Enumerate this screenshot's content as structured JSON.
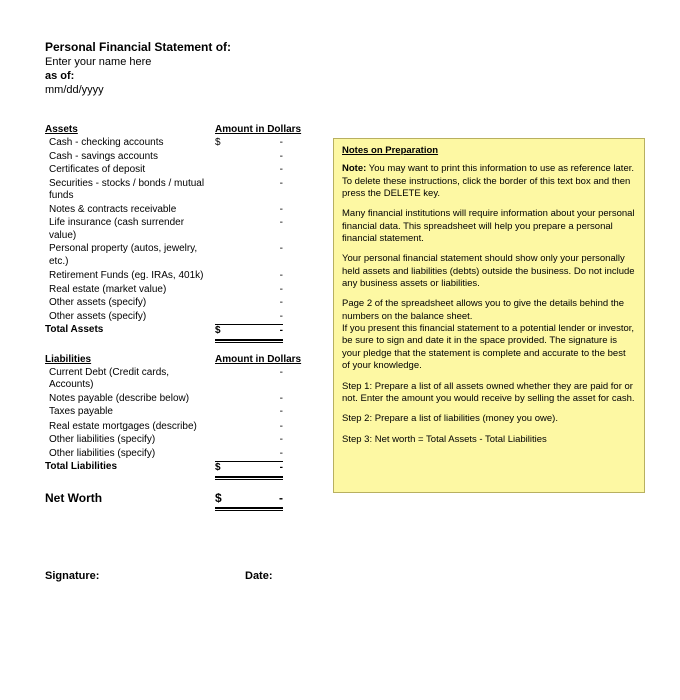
{
  "header": {
    "title": "Personal Financial Statement of:",
    "name_placeholder": "Enter your name here",
    "asof_label": "as of:",
    "date_placeholder": "mm/dd/yyyy"
  },
  "assets": {
    "heading": "Assets",
    "amount_heading": "Amount in Dollars",
    "items": [
      {
        "label": "Cash - checking accounts",
        "currency": "$",
        "value": "-"
      },
      {
        "label": "Cash - savings accounts",
        "currency": "",
        "value": "-"
      },
      {
        "label": "Certificates of deposit",
        "currency": "",
        "value": "-"
      },
      {
        "label": "Securities - stocks / bonds / mutual funds",
        "currency": "",
        "value": "-"
      },
      {
        "label": "Notes & contracts receivable",
        "currency": "",
        "value": "-"
      },
      {
        "label": "Life insurance (cash surrender value)",
        "currency": "",
        "value": "-"
      },
      {
        "label": "Personal property (autos, jewelry, etc.)",
        "currency": "",
        "value": "-"
      },
      {
        "label": "",
        "currency": "",
        "value": ""
      },
      {
        "label": "Retirement Funds (eg. IRAs, 401k)",
        "currency": "",
        "value": "-"
      },
      {
        "label": "Real estate (market value)",
        "currency": "",
        "value": "-"
      },
      {
        "label": "Other assets (specify)",
        "currency": "",
        "value": "-"
      },
      {
        "label": "Other assets (specify)",
        "currency": "",
        "value": "-"
      }
    ],
    "total_label": "Total Assets",
    "total_currency": "$",
    "total_value": "-"
  },
  "liabilities": {
    "heading": "Liabilities",
    "amount_heading": "Amount in Dollars",
    "items": [
      {
        "label": "Current Debt (Credit cards, Accounts)",
        "currency": "",
        "value": "-"
      },
      {
        "label": "Notes payable (describe below)",
        "currency": "",
        "value": "-"
      },
      {
        "label": "Taxes payable",
        "currency": "",
        "value": "-"
      },
      {
        "label": "",
        "currency": "",
        "value": ""
      },
      {
        "label": "Real estate mortgages (describe)",
        "currency": "",
        "value": "-"
      },
      {
        "label": "Other liabilities (specify)",
        "currency": "",
        "value": "-"
      },
      {
        "label": "Other liabilities (specify)",
        "currency": "",
        "value": "-"
      }
    ],
    "total_label": "Total Liabilities",
    "total_currency": "$",
    "total_value": "-"
  },
  "networth": {
    "label": "Net Worth",
    "currency": "$",
    "value": "-"
  },
  "notes": {
    "title": "Notes on Preparation",
    "p1_bold": "Note:",
    "p1": " You may want to print this information to use as reference later. To delete these instructions, click the border of this text box and then press the DELETE key.",
    "p2": "Many financial institutions will require information about your personal financial data. This spreadsheet will help you prepare a personal financial statement.",
    "p3": "Your personal financial statement should show only your personally held assets and liabilities (debts) outside the business. Do not include any business assets or liabilities.",
    "p4": "Page 2 of the spreadsheet allows you to give the details behind the numbers on the balance sheet.",
    "p5": "If you present this financial statement to a potential lender or investor, be sure to sign and date it in the space provided. The signature is your pledge that the statement is complete and accurate to the best of your knowledge.",
    "s1": "Step 1: Prepare a list of all assets owned whether they are paid for or not. Enter the amount you would receive by selling the asset for cash.",
    "s2": "Step 2: Prepare a list of liabilities (money you owe).",
    "s3": "Step 3: Net worth = Total Assets - Total Liabilities"
  },
  "signature": {
    "sig_label": "Signature:",
    "date_label": "Date:"
  },
  "colors": {
    "note_bg": "#fdf8a3",
    "note_border": "#b8b060",
    "page_bg": "#ffffff",
    "text": "#000000"
  }
}
